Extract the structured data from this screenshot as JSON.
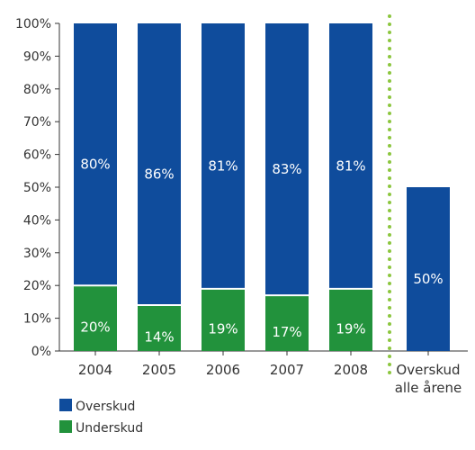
{
  "chart_data": {
    "type": "bar",
    "stacked": true,
    "categories": [
      "2004",
      "2005",
      "2006",
      "2007",
      "2008"
    ],
    "series": [
      {
        "name": "Underskud",
        "color": "#22923c",
        "values": [
          20,
          14,
          19,
          17,
          19
        ],
        "labels": [
          "20%",
          "14%",
          "19%",
          "17%",
          "19%"
        ]
      },
      {
        "name": "Overskud",
        "color": "#0f4c9c",
        "values": [
          80,
          86,
          81,
          83,
          81
        ],
        "labels": [
          "80%",
          "86%",
          "81%",
          "83%",
          "81%"
        ]
      }
    ],
    "summary_bar": {
      "label_lines": [
        "Overskud",
        "alle årene"
      ],
      "series": "Overskud",
      "value": 50,
      "label": "50%"
    },
    "separator": {
      "style": "dotted",
      "color": "#8cc63f"
    },
    "ylim": [
      0,
      100
    ],
    "yticks": [
      "0%",
      "10%",
      "20%",
      "30%",
      "40%",
      "50%",
      "60%",
      "70%",
      "80%",
      "90%",
      "100%"
    ],
    "legend": {
      "position": "bottom-left",
      "items": [
        {
          "label": "Overskud",
          "color": "#0f4c9c"
        },
        {
          "label": "Underskud",
          "color": "#22923c"
        }
      ]
    },
    "grid": false
  }
}
